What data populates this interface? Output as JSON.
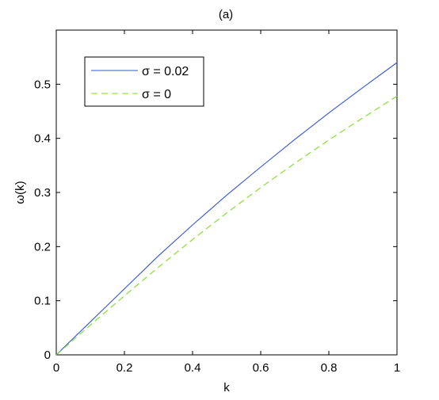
{
  "chart_data": {
    "type": "line",
    "title": "(a)",
    "xlabel": "k",
    "ylabel": "ω(k)",
    "xlim": [
      0,
      1
    ],
    "ylim": [
      0,
      0.6
    ],
    "xticks": [
      0,
      0.2,
      0.4,
      0.6,
      0.8,
      1
    ],
    "xtick_labels": [
      "0",
      "0.2",
      "0.4",
      "0.6",
      "0.8",
      "1"
    ],
    "yticks": [
      0,
      0.1,
      0.2,
      0.3,
      0.4,
      0.5
    ],
    "ytick_labels": [
      "0",
      "0.1",
      "0.2",
      "0.3",
      "0.4",
      "0.5"
    ],
    "grid": false,
    "legend_position": "top-left",
    "series": [
      {
        "name": "σ = 0.02",
        "color": "#3355dd",
        "style": "solid",
        "x": [
          0,
          0.1,
          0.2,
          0.3,
          0.4,
          0.5,
          0.6,
          0.7,
          0.8,
          0.9,
          1.0
        ],
        "y": [
          0,
          0.061,
          0.122,
          0.183,
          0.24,
          0.295,
          0.347,
          0.398,
          0.447,
          0.494,
          0.54
        ]
      },
      {
        "name": "σ = 0",
        "color": "#7ddd22",
        "style": "dashed",
        "x": [
          0,
          0.1,
          0.2,
          0.3,
          0.4,
          0.5,
          0.6,
          0.7,
          0.8,
          0.9,
          1.0
        ],
        "y": [
          0,
          0.055,
          0.109,
          0.162,
          0.213,
          0.262,
          0.309,
          0.354,
          0.397,
          0.438,
          0.478
        ]
      }
    ]
  }
}
